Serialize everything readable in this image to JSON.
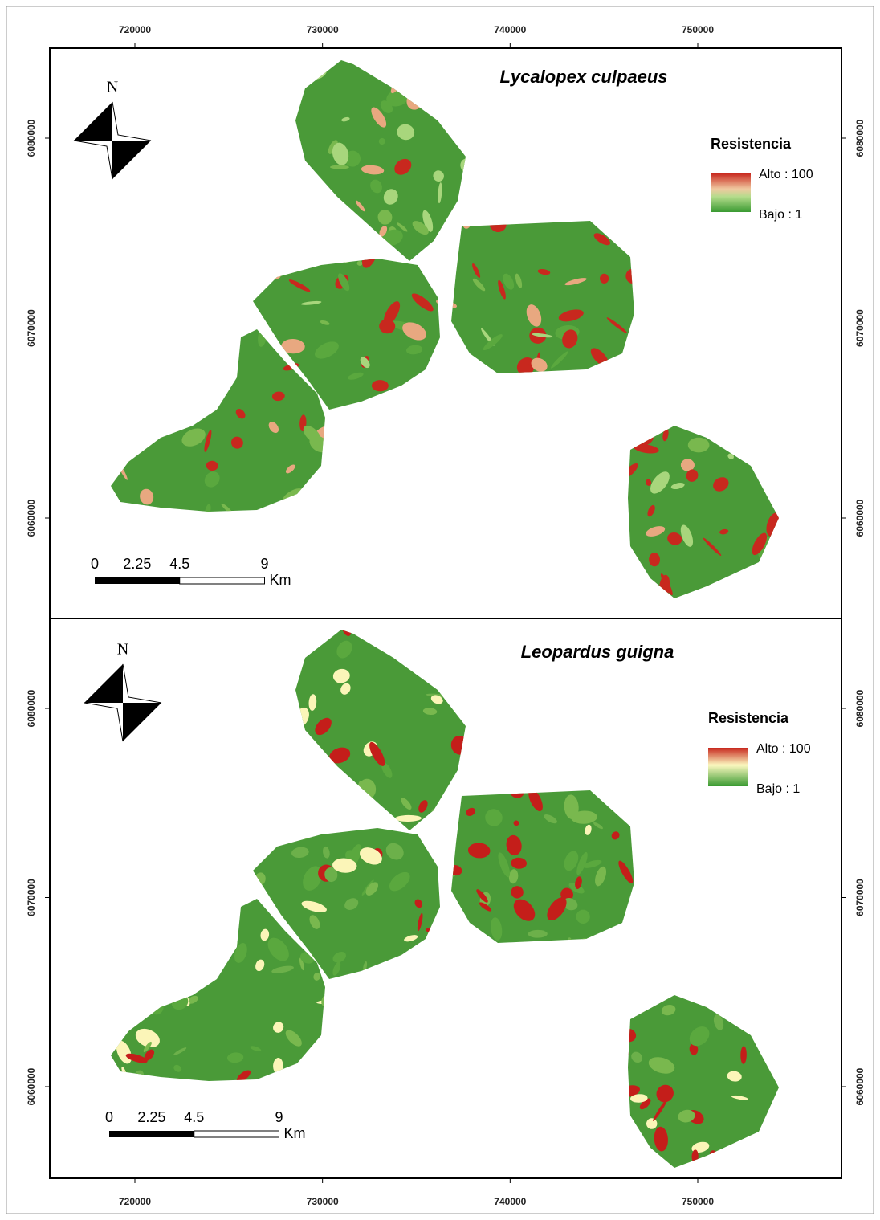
{
  "x_axis": {
    "ticks": [
      720000,
      730000,
      740000,
      750000
    ]
  },
  "y_axis": {
    "ticks": [
      6080000,
      6070000,
      6060000
    ]
  },
  "panels": [
    {
      "title": "Lycalopex culpaeus",
      "north": "N",
      "legend": {
        "title": "Resistencia",
        "high": "Alto : 100",
        "low": "Bajo : 1"
      },
      "scale_bar": {
        "labels": [
          0,
          2.25,
          4.5,
          9
        ],
        "unit": "Km"
      }
    },
    {
      "title": "Leopardus guigna",
      "north": "N",
      "legend": {
        "title": "Resistencia",
        "high": "Alto : 100",
        "low": "Bajo : 1"
      },
      "scale_bar": {
        "labels": [
          0,
          2.25,
          4.5,
          9
        ],
        "unit": "Km"
      }
    }
  ]
}
